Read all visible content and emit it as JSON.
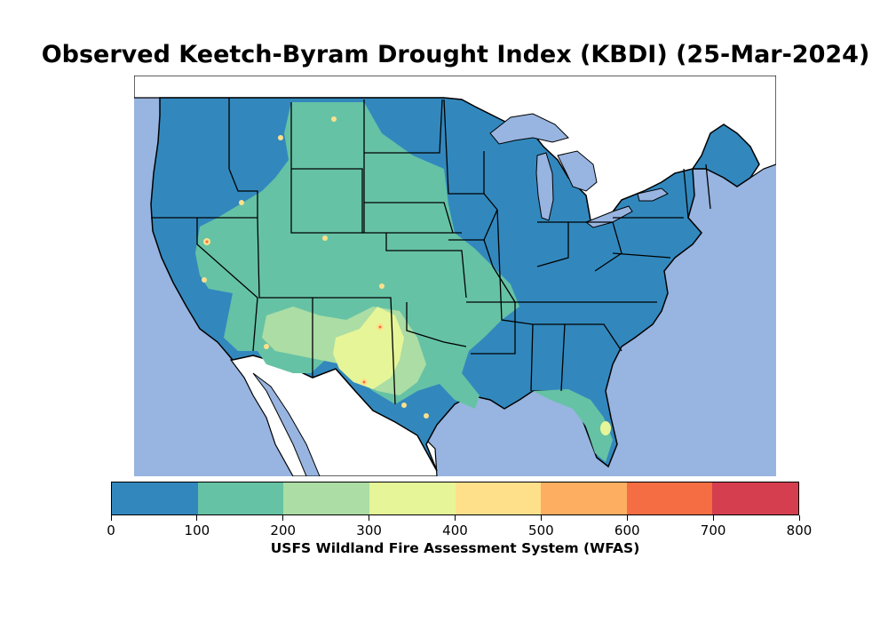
{
  "title": "Observed Keetch-Byram Drought Index (KBDI) (25-Mar-2024)",
  "colors": {
    "water": "#98b4e0",
    "land_outside": "#ffffff",
    "border": "#000000"
  },
  "icons": {
    "map": "conus-map"
  },
  "colorbar": {
    "label": "USFS Wildland Fire Assessment System (WFAS)",
    "ticks": [
      "0",
      "100",
      "200",
      "300",
      "400",
      "500",
      "600",
      "700",
      "800"
    ],
    "colors": [
      "#3288bd",
      "#66c2a5",
      "#abdda4",
      "#e6f598",
      "#fee08b",
      "#fdae61",
      "#f46d43",
      "#d53e4f"
    ]
  }
}
